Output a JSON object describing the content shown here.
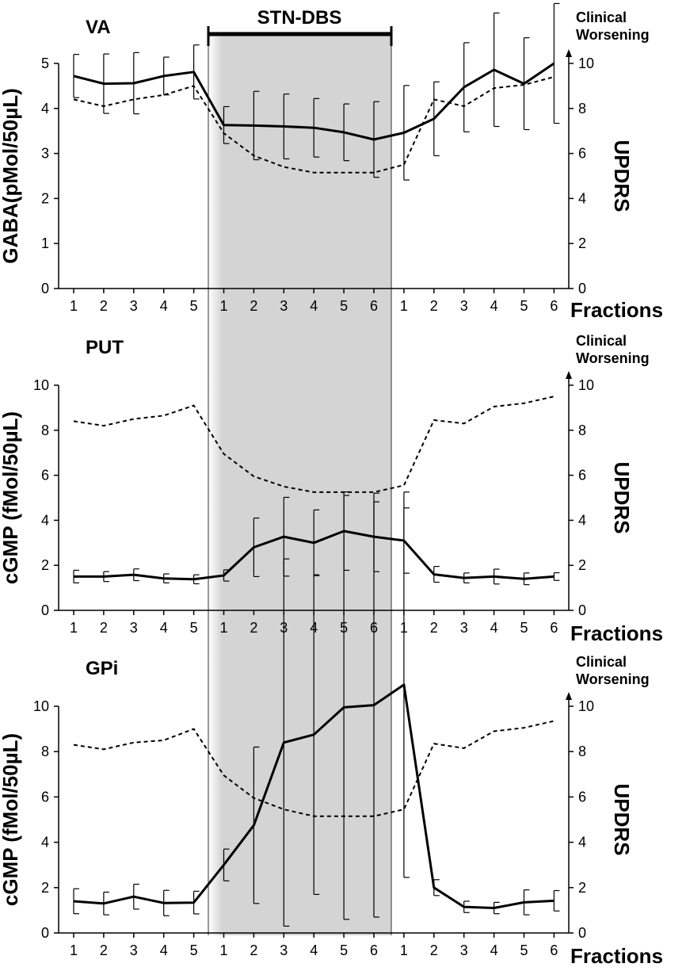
{
  "figure": {
    "stimulation_label": "STN-DBS",
    "x_unit_label": "Fractions",
    "right_axis_label": "UPDRS",
    "clinical_worsening_line1": "Clinical",
    "clinical_worsening_line2": "Worsening"
  },
  "chart_data": [
    {
      "type": "line",
      "panel": "VA",
      "title": "VA",
      "categories": [
        "1",
        "2",
        "3",
        "4",
        "5",
        "1",
        "2",
        "3",
        "4",
        "5",
        "6",
        "1",
        "2",
        "3",
        "4",
        "5",
        "6"
      ],
      "stimulation_period": {
        "label": "STN-DBS",
        "from_fraction_index": 5,
        "to_fraction_index": 10
      },
      "ylabel": "GABA(pMol/50µL)",
      "ylim": [
        0,
        5
      ],
      "yticks": [
        0,
        1,
        2,
        3,
        4,
        5
      ],
      "y2label": "UPDRS",
      "y2lim": [
        0,
        10
      ],
      "y2ticks": [
        0,
        2,
        4,
        6,
        8,
        10
      ],
      "xlabel": "Fractions",
      "series": [
        {
          "name": "GABA",
          "style": "solid",
          "axis": "left",
          "values": [
            4.72,
            4.55,
            4.56,
            4.72,
            4.81,
            3.63,
            3.62,
            3.6,
            3.57,
            3.47,
            3.31,
            3.46,
            3.77,
            4.47,
            4.86,
            4.55,
            5.0
          ],
          "errors": [
            0.48,
            0.66,
            0.68,
            0.42,
            0.6,
            0.41,
            0.76,
            0.72,
            0.65,
            0.63,
            0.84,
            1.05,
            0.82,
            0.99,
            1.26,
            1.02,
            1.33
          ]
        },
        {
          "name": "UPDRS",
          "style": "dashed",
          "axis": "right",
          "values": [
            8.4,
            8.1,
            8.4,
            8.6,
            9.0,
            6.9,
            5.9,
            5.4,
            5.15,
            5.15,
            5.15,
            5.5,
            8.4,
            8.1,
            8.9,
            9.05,
            9.4
          ]
        }
      ]
    },
    {
      "type": "line",
      "panel": "PUT",
      "title": "PUT",
      "categories": [
        "1",
        "2",
        "3",
        "4",
        "5",
        "1",
        "2",
        "3",
        "4",
        "5",
        "6",
        "1",
        "2",
        "3",
        "4",
        "5",
        "6"
      ],
      "stimulation_period": {
        "label": "STN-DBS",
        "from_fraction_index": 5,
        "to_fraction_index": 10
      },
      "ylabel": "cGMP (fMol/50µL)",
      "ylim": [
        0,
        10
      ],
      "yticks": [
        0,
        2,
        4,
        6,
        8,
        10
      ],
      "y2label": "UPDRS",
      "y2lim": [
        0,
        10
      ],
      "y2ticks": [
        0,
        2,
        4,
        6,
        8,
        10
      ],
      "xlabel": "Fractions",
      "series": [
        {
          "name": "cGMP",
          "style": "solid",
          "axis": "left",
          "values": [
            1.5,
            1.5,
            1.58,
            1.42,
            1.38,
            1.55,
            2.8,
            3.27,
            3.0,
            3.52,
            3.27,
            3.1,
            1.6,
            1.44,
            1.5,
            1.4,
            1.5
          ],
          "errors": [
            0.28,
            0.22,
            0.26,
            0.2,
            0.2,
            0.25,
            1.3,
            1.75,
            1.46,
            1.74,
            1.55,
            1.45,
            0.35,
            0.22,
            0.33,
            0.26,
            0.17
          ]
        },
        {
          "name": "UPDRS",
          "style": "dashed",
          "axis": "right",
          "values": [
            8.4,
            8.2,
            8.5,
            8.65,
            9.1,
            6.95,
            5.95,
            5.5,
            5.25,
            5.25,
            5.25,
            5.55,
            8.45,
            8.3,
            9.05,
            9.2,
            9.5
          ]
        }
      ]
    },
    {
      "type": "line",
      "panel": "GPi",
      "title": "GPi",
      "categories": [
        "1",
        "2",
        "3",
        "4",
        "5",
        "1",
        "2",
        "3",
        "4",
        "5",
        "6",
        "1",
        "2",
        "3",
        "4",
        "5",
        "6"
      ],
      "stimulation_period": {
        "label": "STN-DBS",
        "from_fraction_index": 5,
        "to_fraction_index": 10
      },
      "ylabel": "cGMP (fMol/50µL)",
      "ylim": [
        0,
        10
      ],
      "yticks": [
        0,
        2,
        4,
        6,
        8,
        10
      ],
      "y2label": "UPDRS",
      "y2lim": [
        0,
        10
      ],
      "y2ticks": [
        0,
        2,
        4,
        6,
        8,
        10
      ],
      "xlabel": "Fractions",
      "series": [
        {
          "name": "cGMP",
          "style": "solid",
          "axis": "left",
          "values": [
            1.4,
            1.3,
            1.6,
            1.32,
            1.34,
            3.0,
            4.75,
            8.4,
            8.75,
            9.95,
            10.05,
            10.95,
            2.0,
            1.15,
            1.1,
            1.35,
            1.42
          ],
          "errors": [
            0.55,
            0.5,
            0.55,
            0.56,
            0.5,
            0.7,
            3.45,
            8.1,
            7.05,
            9.35,
            9.35,
            8.5,
            0.35,
            0.25,
            0.25,
            0.55,
            0.45
          ]
        },
        {
          "name": "UPDRS",
          "style": "dashed",
          "axis": "right",
          "values": [
            8.3,
            8.1,
            8.4,
            8.5,
            9.0,
            6.95,
            5.95,
            5.45,
            5.15,
            5.15,
            5.15,
            5.45,
            8.35,
            8.15,
            8.9,
            9.05,
            9.35
          ]
        }
      ]
    }
  ]
}
